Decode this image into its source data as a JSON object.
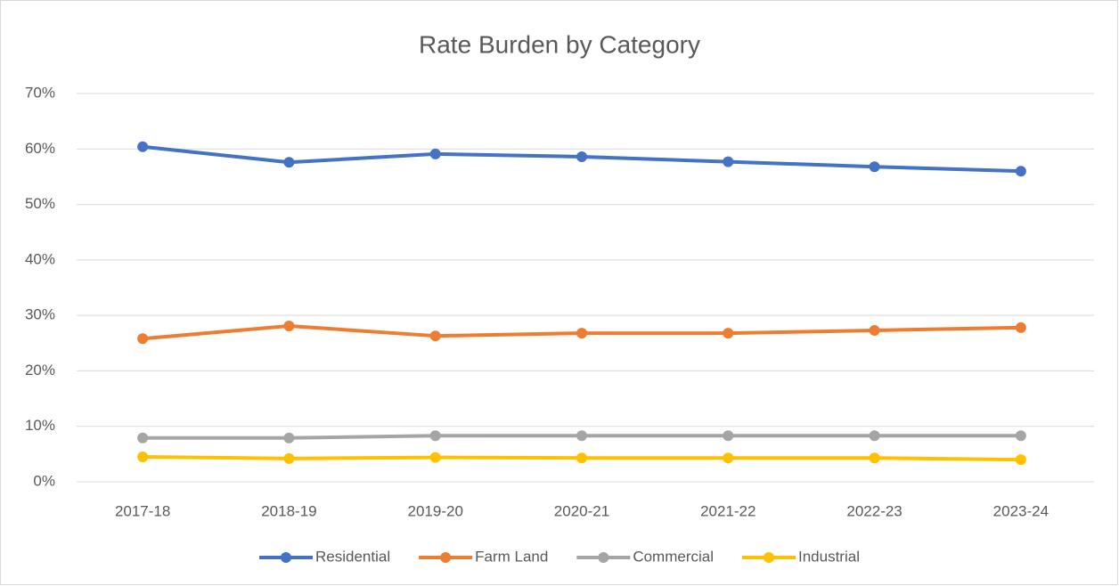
{
  "chart_data": {
    "type": "line",
    "title": "Rate Burden by Category",
    "categories": [
      "2017-18",
      "2018-19",
      "2019-20",
      "2020-21",
      "2021-22",
      "2022-23",
      "2023-24"
    ],
    "series": [
      {
        "name": "Residential",
        "color": "#4472c4",
        "values": [
          60.4,
          57.6,
          59.1,
          58.6,
          57.7,
          56.8,
          56.0
        ]
      },
      {
        "name": "Farm Land",
        "color": "#ed7d31",
        "values": [
          25.8,
          28.1,
          26.3,
          26.8,
          26.8,
          27.3,
          27.8
        ]
      },
      {
        "name": "Commercial",
        "color": "#a5a5a5",
        "values": [
          7.9,
          7.9,
          8.3,
          8.3,
          8.3,
          8.3,
          8.3
        ]
      },
      {
        "name": "Industrial",
        "color": "#ffc000",
        "values": [
          4.5,
          4.2,
          4.4,
          4.3,
          4.3,
          4.3,
          4.0
        ]
      }
    ],
    "ylim": [
      0,
      70
    ],
    "yticks": [
      {
        "value": 0,
        "label": "0%"
      },
      {
        "value": 10,
        "label": "10%"
      },
      {
        "value": 20,
        "label": "20%"
      },
      {
        "value": 30,
        "label": "30%"
      },
      {
        "value": 40,
        "label": "40%"
      },
      {
        "value": 50,
        "label": "50%"
      },
      {
        "value": 60,
        "label": "60%"
      },
      {
        "value": 70,
        "label": "70%"
      }
    ],
    "grid": true,
    "legend": "bottom"
  }
}
